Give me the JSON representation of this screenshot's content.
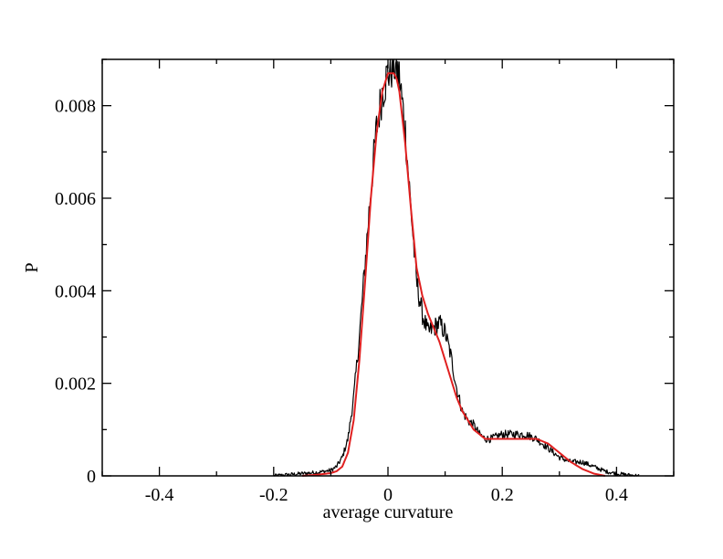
{
  "chart_data": {
    "type": "line",
    "title": "",
    "xlabel": "average curvature",
    "ylabel": "P",
    "xlim": [
      -0.5,
      0.5
    ],
    "ylim": [
      0,
      0.009
    ],
    "x_ticks": [
      -0.4,
      -0.2,
      0.0,
      0.2,
      0.4
    ],
    "x_tick_labels": [
      "-0.4",
      "-0.2",
      "0",
      "0.2",
      "0.4"
    ],
    "y_ticks": [
      0,
      0.002,
      0.004,
      0.006,
      0.008
    ],
    "y_tick_labels": [
      "0",
      "0.002",
      "0.004",
      "0.006",
      "0.008"
    ],
    "grid": false,
    "legend": "none",
    "series": [
      {
        "color": "#000000",
        "style": "noisy histogram",
        "x": [
          -0.2,
          -0.18,
          -0.16,
          -0.14,
          -0.12,
          -0.1,
          -0.09,
          -0.08,
          -0.07,
          -0.06,
          -0.05,
          -0.04,
          -0.03,
          -0.02,
          -0.01,
          0.0,
          0.01,
          0.015,
          0.02,
          0.03,
          0.04,
          0.05,
          0.06,
          0.07,
          0.08,
          0.09,
          0.1,
          0.11,
          0.12,
          0.13,
          0.14,
          0.15,
          0.16,
          0.17,
          0.18,
          0.2,
          0.22,
          0.24,
          0.26,
          0.28,
          0.3,
          0.32,
          0.34,
          0.36,
          0.38,
          0.4,
          0.42,
          0.44
        ],
        "values": [
          0.0,
          2e-05,
          4e-05,
          6e-05,
          8e-05,
          0.00012,
          0.0002,
          0.0004,
          0.0008,
          0.0017,
          0.003,
          0.0046,
          0.0062,
          0.0075,
          0.0083,
          0.0087,
          0.0089,
          0.0088,
          0.0086,
          0.0075,
          0.0058,
          0.0042,
          0.0035,
          0.0031,
          0.0032,
          0.0033,
          0.0031,
          0.0026,
          0.0019,
          0.0014,
          0.0012,
          0.0011,
          0.0009,
          0.0008,
          0.0008,
          0.0009,
          0.0009,
          0.0009,
          0.0008,
          0.0006,
          0.0004,
          0.0003,
          0.0003,
          0.0002,
          0.0001,
          5e-05,
          2e-05,
          0.0
        ]
      },
      {
        "color": "#e02020",
        "style": "smooth fit",
        "x": [
          -0.15,
          -0.12,
          -0.1,
          -0.09,
          -0.08,
          -0.07,
          -0.06,
          -0.05,
          -0.04,
          -0.03,
          -0.02,
          -0.01,
          0.0,
          0.01,
          0.015,
          0.02,
          0.03,
          0.04,
          0.05,
          0.06,
          0.07,
          0.08,
          0.09,
          0.1,
          0.11,
          0.12,
          0.13,
          0.14,
          0.15,
          0.16,
          0.17,
          0.18,
          0.2,
          0.22,
          0.24,
          0.26,
          0.28,
          0.3,
          0.32,
          0.34,
          0.36,
          0.38
        ],
        "values": [
          0.0,
          3e-05,
          6e-05,
          0.0001,
          0.0002,
          0.0005,
          0.0012,
          0.0025,
          0.0042,
          0.006,
          0.0074,
          0.0083,
          0.0087,
          0.0087,
          0.0086,
          0.0083,
          0.0072,
          0.0058,
          0.0045,
          0.0039,
          0.0035,
          0.0032,
          0.0029,
          0.0025,
          0.0021,
          0.0017,
          0.0014,
          0.0012,
          0.001,
          0.0009,
          0.0008,
          0.0008,
          0.0008,
          0.0008,
          0.0008,
          0.0008,
          0.0007,
          0.0005,
          0.0003,
          0.00015,
          5e-05,
          0.0
        ]
      }
    ]
  }
}
